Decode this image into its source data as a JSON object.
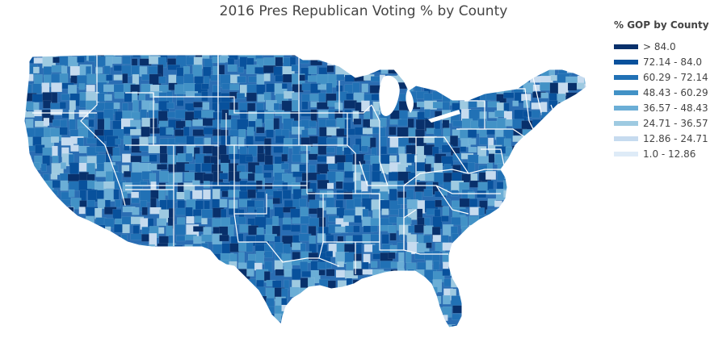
{
  "title": "2016 Pres Republican Voting % by County",
  "legend": {
    "title": "% GOP by County",
    "items": [
      {
        "label": "> 84.0",
        "color": "#08306b"
      },
      {
        "label": "72.14 - 84.0",
        "color": "#08519c"
      },
      {
        "label": "60.29 - 72.14",
        "color": "#2171b5"
      },
      {
        "label": "48.43 - 60.29",
        "color": "#4292c6"
      },
      {
        "label": "36.57 - 48.43",
        "color": "#6baed6"
      },
      {
        "label": "24.71 - 36.57",
        "color": "#9ecae1"
      },
      {
        "label": "12.86 - 24.71",
        "color": "#c6dbef"
      },
      {
        "label": "1.0 - 12.86",
        "color": "#deebf7"
      }
    ]
  },
  "map": {
    "region": "contiguous-united-states",
    "boundaries": "state-and-county",
    "base_color": "#2a6db3",
    "border_color": "#ffffff"
  }
}
